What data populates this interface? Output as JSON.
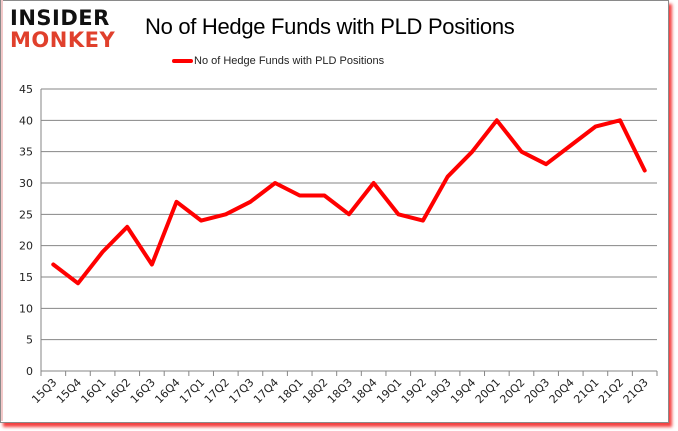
{
  "logo": {
    "line1": "INSIDER",
    "line2": "MONKEY"
  },
  "title": "No of Hedge Funds with PLD Positions",
  "legend": {
    "label": "No of Hedge Funds with PLD Positions",
    "color": "#ff0000"
  },
  "chart_data": {
    "type": "line",
    "title": "No of Hedge Funds with PLD Positions",
    "xlabel": "",
    "ylabel": "",
    "ylim": [
      0,
      45
    ],
    "yticks": [
      0,
      5,
      10,
      15,
      20,
      25,
      30,
      35,
      40,
      45
    ],
    "grid": true,
    "legend_position": "top",
    "categories": [
      "15Q3",
      "15Q4",
      "16Q1",
      "16Q2",
      "16Q3",
      "16Q4",
      "17Q1",
      "17Q2",
      "17Q3",
      "17Q4",
      "18Q1",
      "18Q2",
      "18Q3",
      "18Q4",
      "19Q1",
      "19Q2",
      "19Q3",
      "19Q4",
      "20Q1",
      "20Q2",
      "20Q3",
      "20Q4",
      "21Q1",
      "21Q2",
      "21Q3"
    ],
    "series": [
      {
        "name": "No of Hedge Funds with PLD Positions",
        "color": "#ff0000",
        "values": [
          17,
          14,
          19,
          23,
          17,
          27,
          24,
          25,
          27,
          30,
          28,
          28,
          25,
          30,
          25,
          24,
          31,
          35,
          40,
          35,
          33,
          36,
          39,
          40,
          32
        ]
      }
    ]
  }
}
